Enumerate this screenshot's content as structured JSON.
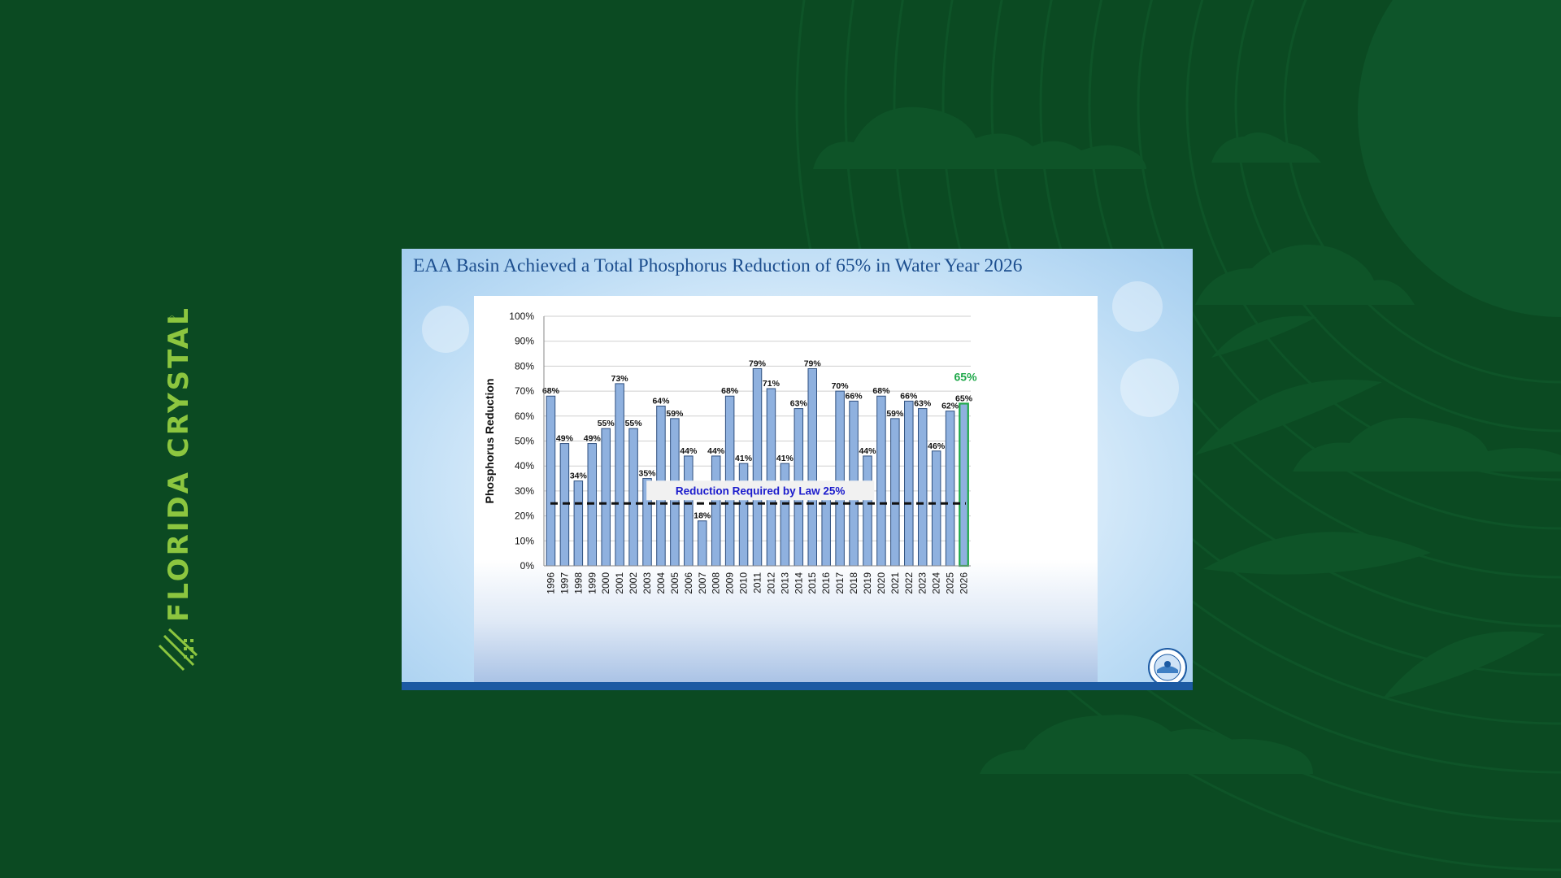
{
  "brand": {
    "name": "FLORIDA CRYSTALS",
    "mark": "®"
  },
  "slide": {
    "title": "EAA Basin Achieved a Total Phosphorus Reduction of 65% in Water Year 2026",
    "seal_icon": "agency-seal-icon"
  },
  "colors": {
    "background": "#0b4a22",
    "brand_green": "#8cc63f",
    "bar_fill": "#8fb1df",
    "bar_stroke": "#2e4f7e",
    "highlight_stroke": "#1fa84a",
    "reference_line": "#111111",
    "reference_text": "#1a1acc"
  },
  "chart_data": {
    "type": "bar",
    "ylabel": "Phosphorus Reduction",
    "xlabel": "",
    "ylim": [
      0,
      100
    ],
    "y_ticks": [
      "0%",
      "10%",
      "20%",
      "30%",
      "40%",
      "50%",
      "60%",
      "70%",
      "80%",
      "90%",
      "100%"
    ],
    "grid": true,
    "categories": [
      "1996",
      "1997",
      "1998",
      "1999",
      "2000",
      "2001",
      "2002",
      "2003",
      "2004",
      "2005",
      "2006",
      "2007",
      "2008",
      "2009",
      "2010",
      "2011",
      "2012",
      "2013",
      "2014",
      "2015",
      "2016",
      "2017",
      "2018",
      "2019",
      "2020",
      "2021",
      "2022",
      "2023",
      "2024",
      "2025",
      "2026"
    ],
    "values": [
      68,
      49,
      34,
      49,
      55,
      73,
      55,
      35,
      64,
      59,
      44,
      18,
      44,
      68,
      41,
      79,
      71,
      41,
      63,
      79,
      27,
      70,
      66,
      44,
      68,
      59,
      66,
      63,
      46,
      62,
      65
    ],
    "data_labels": [
      "68%",
      "49%",
      "34%",
      "49%",
      "55%",
      "73%",
      "55%",
      "35%",
      "64%",
      "59%",
      "44%",
      "18%",
      "44%",
      "68%",
      "41%",
      "79%",
      "71%",
      "41%",
      "63%",
      "79%",
      "",
      "70%",
      "66%",
      "44%",
      "68%",
      "59%",
      "66%",
      "63%",
      "46%",
      "62%",
      "65%"
    ],
    "reference_line": {
      "value": 25,
      "label": "Reduction Required by Law 25%"
    },
    "highlight": {
      "category": "2026",
      "label": "65%"
    }
  }
}
